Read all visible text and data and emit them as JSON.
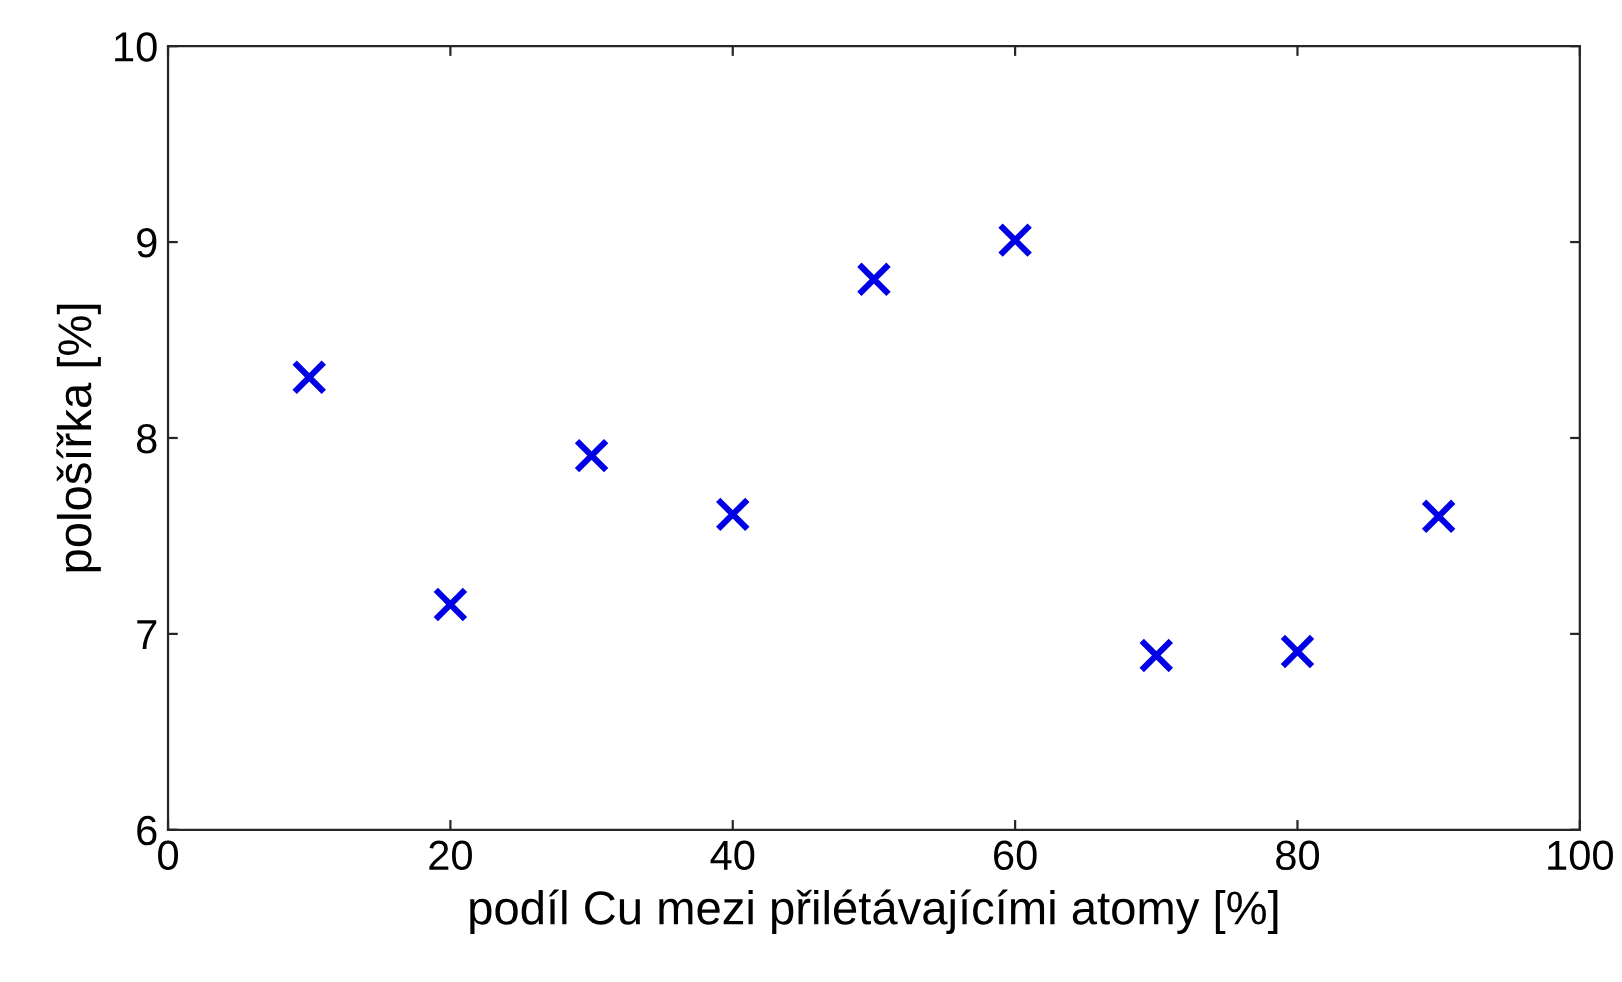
{
  "chart_data": {
    "type": "scatter",
    "xlabel": "podíl Cu mezi přilétávajícími atomy [%]",
    "ylabel": "pološířka [%]",
    "x": [
      10,
      20,
      30,
      40,
      50,
      60,
      70,
      80,
      90
    ],
    "series": [
      {
        "color": "#0000e6",
        "values": [
          8.31,
          7.15,
          7.91,
          7.61,
          8.81,
          9.01,
          6.89,
          6.91,
          7.6
        ]
      }
    ],
    "marker": "cross",
    "grid": false,
    "legend": false,
    "xlim": [
      0,
      100
    ],
    "xticks": [
      0,
      20,
      40,
      60,
      80,
      100
    ],
    "ylim": [
      6,
      10
    ],
    "yticks": [
      6,
      7,
      8,
      9,
      10
    ]
  }
}
